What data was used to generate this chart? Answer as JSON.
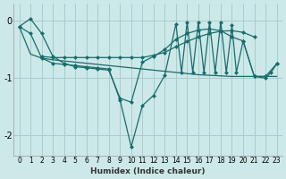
{
  "bg_color": "#cce8e8",
  "grid_color": "#aacccc",
  "line_color": "#1a6b6b",
  "xlabel": "Humidex (Indice chaleur)",
  "xlim": [
    -0.5,
    23.5
  ],
  "ylim": [
    -2.35,
    0.3
  ],
  "yticks": [
    0,
    -1,
    -2
  ],
  "xticks": [
    0,
    1,
    2,
    3,
    4,
    5,
    6,
    7,
    8,
    9,
    10,
    11,
    12,
    13,
    14,
    15,
    16,
    17,
    18,
    19,
    20,
    21,
    22,
    23
  ],
  "line1_x": [
    0,
    1,
    2,
    3,
    4,
    5,
    6,
    7,
    8,
    9,
    10,
    11,
    12,
    13,
    14,
    15,
    16,
    17,
    18,
    19,
    20,
    21,
    22,
    23
  ],
  "line1_y": [
    -0.1,
    -0.58,
    -0.65,
    -0.68,
    -0.7,
    -0.72,
    -0.74,
    -0.76,
    -0.78,
    -0.8,
    -0.82,
    -0.84,
    -0.86,
    -0.88,
    -0.9,
    -0.92,
    -0.94,
    -0.95,
    -0.96,
    -0.97,
    -0.97,
    -0.97,
    -0.97,
    -0.97
  ],
  "line2_x": [
    2,
    3,
    4,
    5,
    6,
    7,
    8,
    9,
    10,
    11,
    12,
    13,
    14,
    15,
    16,
    17,
    18,
    19,
    20,
    21
  ],
  "line2_y": [
    -0.62,
    -0.64,
    -0.64,
    -0.64,
    -0.64,
    -0.64,
    -0.64,
    -0.64,
    -0.64,
    -0.64,
    -0.6,
    -0.55,
    -0.45,
    -0.36,
    -0.28,
    -0.22,
    -0.18,
    -0.17,
    -0.2,
    -0.28
  ],
  "line3_x": [
    0,
    1,
    2,
    3,
    4,
    5,
    6,
    7,
    8,
    9,
    10,
    11,
    12,
    13,
    14,
    15,
    16,
    17,
    18,
    19,
    20,
    21,
    22,
    23
  ],
  "line3_y": [
    -0.1,
    0.04,
    -0.22,
    -0.62,
    -0.74,
    -0.8,
    -0.82,
    -0.84,
    -0.86,
    -1.35,
    -1.42,
    -0.72,
    -0.62,
    -0.5,
    -0.32,
    -0.22,
    -0.16,
    -0.14,
    -0.17,
    -0.28,
    -0.35,
    -0.97,
    -0.97,
    -0.75
  ],
  "line4_x": [
    0,
    1,
    2,
    3,
    4,
    5,
    6,
    7,
    8,
    9,
    10,
    11,
    12,
    13,
    14,
    14.5,
    15,
    15.5,
    16,
    16.5,
    17,
    17.5,
    18,
    18.5,
    19,
    19.4,
    20,
    21,
    22,
    22.5,
    23
  ],
  "line4_y": [
    -0.1,
    -0.22,
    -0.65,
    -0.74,
    -0.76,
    -0.78,
    -0.8,
    -0.82,
    -0.84,
    -1.38,
    -2.2,
    -1.48,
    -1.3,
    -0.95,
    -0.05,
    -0.9,
    -0.02,
    -0.9,
    -0.02,
    -0.9,
    -0.02,
    -0.9,
    -0.02,
    -0.9,
    -0.08,
    -0.9,
    -0.35,
    -0.97,
    -1.0,
    -0.9,
    -0.75
  ]
}
